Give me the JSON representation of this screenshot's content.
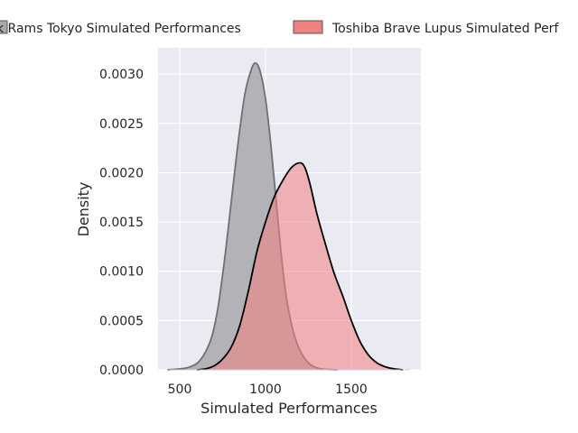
{
  "chart_data": {
    "type": "area",
    "title": "",
    "xlabel": "Simulated Performances",
    "ylabel": "Density",
    "xlim": [
      375,
      1875
    ],
    "ylim": [
      0,
      0.00325
    ],
    "xticks": [
      500,
      1000,
      1500
    ],
    "xtick_labels": [
      "500",
      "1000",
      "1500"
    ],
    "yticks": [
      0,
      0.0005,
      0.001,
      0.0015,
      0.002,
      0.0025,
      0.003
    ],
    "ytick_labels": [
      "0.0000",
      "0.0005",
      "0.0010",
      "0.0015",
      "0.0020",
      "0.0025",
      "0.0030"
    ],
    "grid": true,
    "legend": "top, spanning wider than the figure",
    "series": [
      {
        "name": "Kubota Spears Funabashi Tokyo-Bay... — visible: k Rams Tokyo Simulated Performances",
        "legend_label": "k Rams Tokyo Simulated Performances",
        "fill": "#a9a9ad",
        "line": "#707070",
        "x": [
          430,
          500,
          560,
          620,
          680,
          720,
          760,
          800,
          840,
          880,
          920,
          945,
          970,
          1000,
          1030,
          1060,
          1090,
          1120,
          1160,
          1200,
          1250,
          1300,
          1350,
          1420
        ],
        "y": [
          0,
          1e-05,
          3e-05,
          0.0001,
          0.0003,
          0.0006,
          0.0011,
          0.0017,
          0.0023,
          0.0028,
          0.00306,
          0.00311,
          0.00302,
          0.00275,
          0.0023,
          0.00175,
          0.0012,
          0.00075,
          0.0004,
          0.0002,
          7e-05,
          2e-05,
          5e-06,
          0
        ]
      },
      {
        "name": "Toshiba Brave Lupus Simulated Performances",
        "legend_label": "Toshiba Brave Lupus Simulated Perf",
        "fill": "#f08080",
        "line": "#000000",
        "x": [
          600,
          650,
          700,
          750,
          800,
          850,
          900,
          950,
          1000,
          1050,
          1100,
          1150,
          1200,
          1230,
          1260,
          1300,
          1350,
          1400,
          1450,
          1500,
          1550,
          1600,
          1650,
          1700,
          1750,
          1800
        ],
        "y": [
          0,
          1e-05,
          4e-05,
          0.00011,
          0.00023,
          0.00045,
          0.0008,
          0.0012,
          0.0015,
          0.00175,
          0.00192,
          0.00205,
          0.0021,
          0.00205,
          0.00188,
          0.00158,
          0.00127,
          0.00098,
          0.00075,
          0.0005,
          0.00029,
          0.00015,
          7e-05,
          3e-05,
          1e-05,
          0
        ]
      }
    ]
  },
  "legend": {
    "item1": "k Rams Tokyo Simulated Performances",
    "item2": "Toshiba Brave Lupus Simulated Perf"
  }
}
